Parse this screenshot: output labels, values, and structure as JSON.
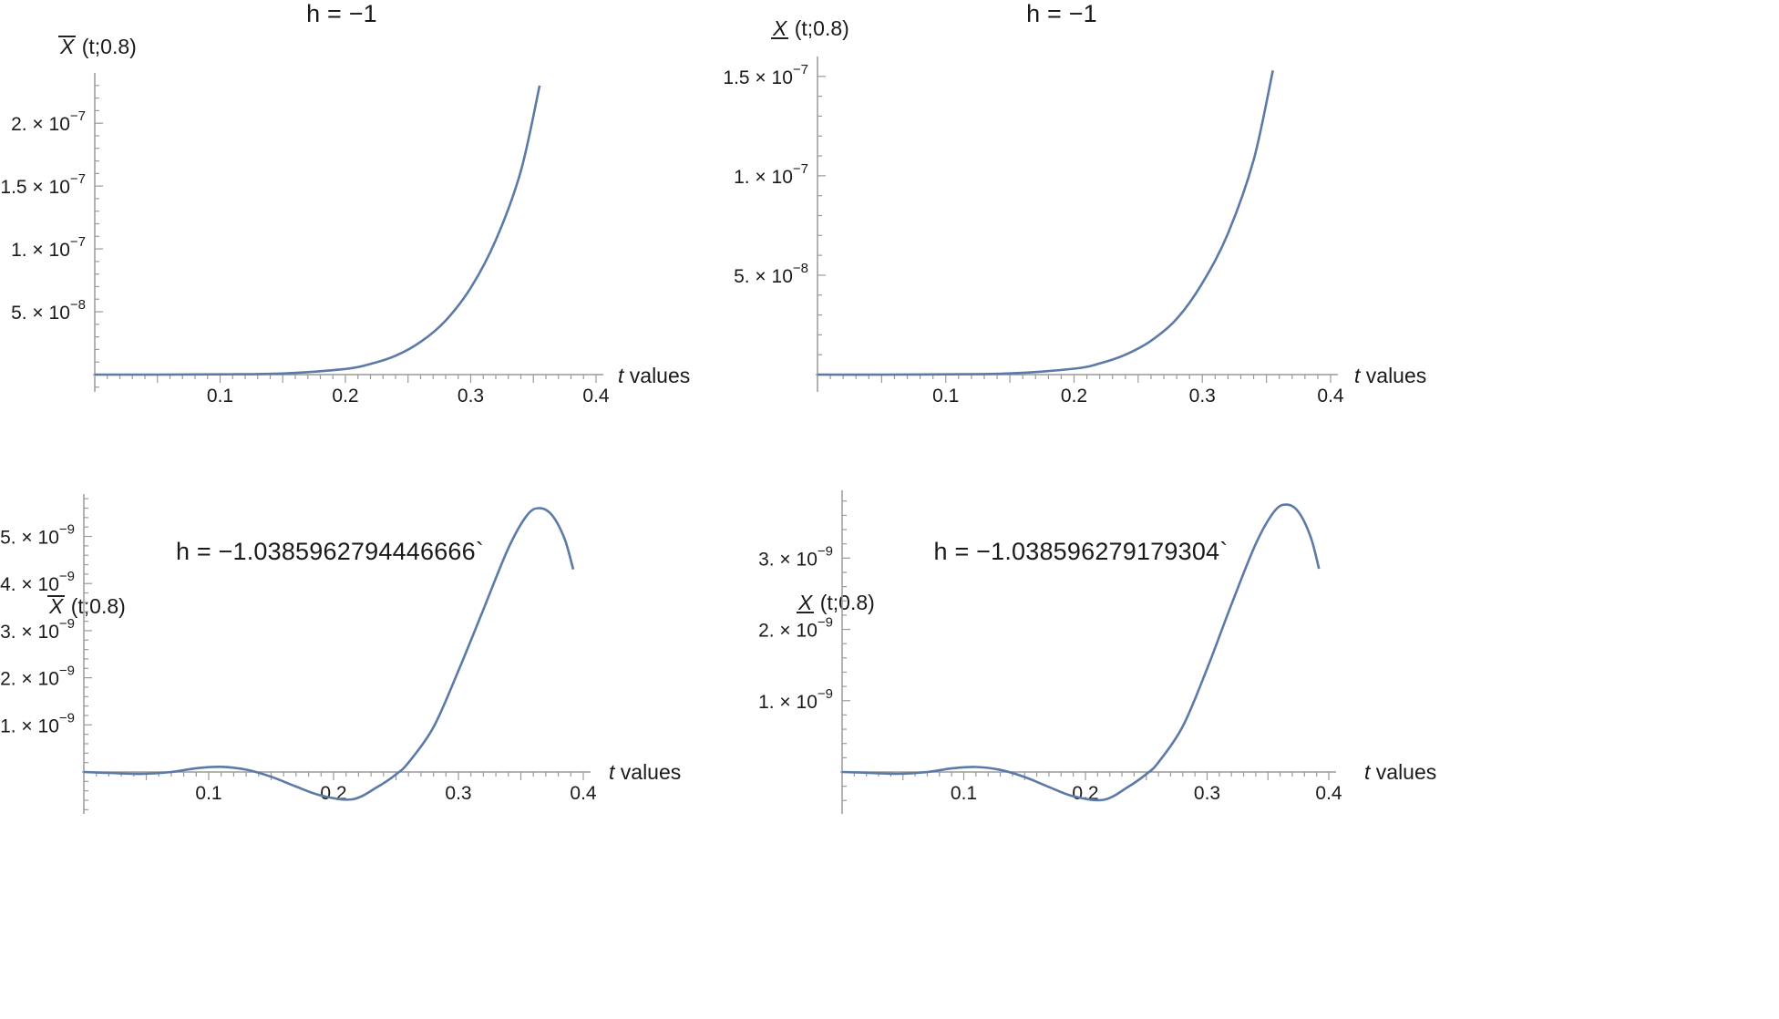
{
  "chart_data": [
    {
      "type": "line",
      "title": "h = −1",
      "ylabel": {
        "symbol": "X",
        "mark": "overline",
        "rest": "(t;0.8)"
      },
      "xlabel": {
        "var": "t",
        "rest": "values"
      },
      "xlim": [
        0,
        0.4
      ],
      "ylim": [
        -1.2e-08,
        2.4e-07
      ],
      "xticks": [
        "0.1",
        "0.2",
        "0.3",
        "0.4"
      ],
      "xtick_values": [
        0.1,
        0.2,
        0.3,
        0.4
      ],
      "yticks": [
        {
          "value": 5e-08,
          "mant": "5.",
          "exp": "−8"
        },
        {
          "value": 1e-07,
          "mant": "1.",
          "exp": "−7"
        },
        {
          "value": 1.5e-07,
          "mant": "1.5",
          "exp": "−7"
        },
        {
          "value": 2e-07,
          "mant": "2.",
          "exp": "−7"
        }
      ],
      "color": "#5b7aa8",
      "series": [
        {
          "x": [
            0,
            0.05,
            0.1,
            0.15,
            0.2,
            0.22,
            0.24,
            0.26,
            0.28,
            0.3,
            0.32,
            0.34,
            0.355
          ],
          "y": [
            0,
            0,
            2e-10,
            9e-10,
            4.5e-09,
            8.5e-09,
            1.5e-08,
            2.6e-08,
            4.3e-08,
            6.9e-08,
            1.07e-07,
            1.62e-07,
            2.3e-07
          ]
        }
      ]
    },
    {
      "type": "line",
      "title": "h = −1",
      "ylabel": {
        "symbol": "X",
        "mark": "underline",
        "rest": "(t;0.8)"
      },
      "xlabel": {
        "var": "t",
        "rest": "values"
      },
      "xlim": [
        0,
        0.4
      ],
      "ylim": [
        -8e-09,
        1.6e-07
      ],
      "xticks": [
        "0.1",
        "0.2",
        "0.3",
        "0.4"
      ],
      "xtick_values": [
        0.1,
        0.2,
        0.3,
        0.4
      ],
      "yticks": [
        {
          "value": 5e-08,
          "mant": "5.",
          "exp": "−8"
        },
        {
          "value": 1e-07,
          "mant": "1.",
          "exp": "−7"
        },
        {
          "value": 1.5e-07,
          "mant": "1.5",
          "exp": "−7"
        }
      ],
      "color": "#5b7aa8",
      "series": [
        {
          "x": [
            0,
            0.05,
            0.1,
            0.15,
            0.2,
            0.22,
            0.24,
            0.26,
            0.28,
            0.3,
            0.32,
            0.34,
            0.355
          ],
          "y": [
            0,
            0,
            1.5e-10,
            6e-10,
            3e-09,
            5.6e-09,
            1e-08,
            1.7e-08,
            2.8e-08,
            4.6e-08,
            7.1e-08,
            1.08e-07,
            1.53e-07
          ]
        }
      ]
    },
    {
      "type": "line",
      "title": "h = −1.0385962794446666`",
      "ylabel": {
        "symbol": "X",
        "mark": "overline",
        "rest": "(t;0.8)"
      },
      "xlabel": {
        "var": "t",
        "rest": "values"
      },
      "xlim": [
        0,
        0.4
      ],
      "ylim": [
        -6e-10,
        5.9e-09
      ],
      "xticks": [
        "0.1",
        "0.2",
        "0.3",
        "0.4"
      ],
      "xtick_values": [
        0.1,
        0.2,
        0.3,
        0.4
      ],
      "yticks": [
        {
          "value": 1e-09,
          "mant": "1.",
          "exp": "−9"
        },
        {
          "value": 2e-09,
          "mant": "2.",
          "exp": "−9"
        },
        {
          "value": 3e-09,
          "mant": "3.",
          "exp": "−9"
        },
        {
          "value": 4e-09,
          "mant": "4.",
          "exp": "−9"
        },
        {
          "value": 5e-09,
          "mant": "5.",
          "exp": "−9"
        }
      ],
      "color": "#5b7aa8",
      "series": [
        {
          "x": [
            0,
            0.02,
            0.045,
            0.07,
            0.09,
            0.11,
            0.13,
            0.15,
            0.17,
            0.19,
            0.215,
            0.235,
            0.25,
            0.26,
            0.28,
            0.3,
            0.32,
            0.34,
            0.355,
            0.365,
            0.375,
            0.385,
            0.392
          ],
          "y": [
            0,
            -2e-11,
            -4e-11,
            0,
            8e-11,
            1.1e-10,
            5e-11,
            -1e-10,
            -3.1e-10,
            -5e-10,
            -5.8e-10,
            -3.2e-10,
            -5e-11,
            2e-10,
            9.5e-10,
            2.15e-09,
            3.45e-09,
            4.75e-09,
            5.45e-09,
            5.6e-09,
            5.45e-09,
            4.95e-09,
            4.3e-09
          ]
        }
      ]
    },
    {
      "type": "line",
      "title": "h = −1.038596279179304`",
      "ylabel": {
        "symbol": "X",
        "mark": "underline",
        "rest": "(t;0.8)"
      },
      "xlabel": {
        "var": "t",
        "rest": "values"
      },
      "xlim": [
        0,
        0.4
      ],
      "ylim": [
        -4e-10,
        3.95e-09
      ],
      "xticks": [
        "0.1",
        "0.2",
        "0.3",
        "0.4"
      ],
      "xtick_values": [
        0.1,
        0.2,
        0.3,
        0.4
      ],
      "yticks": [
        {
          "value": 1e-09,
          "mant": "1.",
          "exp": "−9"
        },
        {
          "value": 2e-09,
          "mant": "2.",
          "exp": "−9"
        },
        {
          "value": 3e-09,
          "mant": "3.",
          "exp": "−9"
        }
      ],
      "color": "#5b7aa8",
      "series": [
        {
          "x": [
            0,
            0.02,
            0.045,
            0.07,
            0.09,
            0.11,
            0.13,
            0.15,
            0.17,
            0.19,
            0.215,
            0.235,
            0.25,
            0.26,
            0.28,
            0.3,
            0.32,
            0.34,
            0.355,
            0.365,
            0.375,
            0.385,
            0.392
          ],
          "y": [
            0,
            -1e-11,
            -2.5e-11,
            0,
            5e-11,
            7e-11,
            3e-11,
            -7e-11,
            -2.1e-10,
            -3.4e-10,
            -3.9e-10,
            -2.1e-10,
            -3e-11,
            1.35e-10,
            6.4e-10,
            1.45e-09,
            2.35e-09,
            3.2e-09,
            3.65e-09,
            3.75e-09,
            3.65e-09,
            3.3e-09,
            2.85e-09
          ]
        }
      ]
    }
  ]
}
